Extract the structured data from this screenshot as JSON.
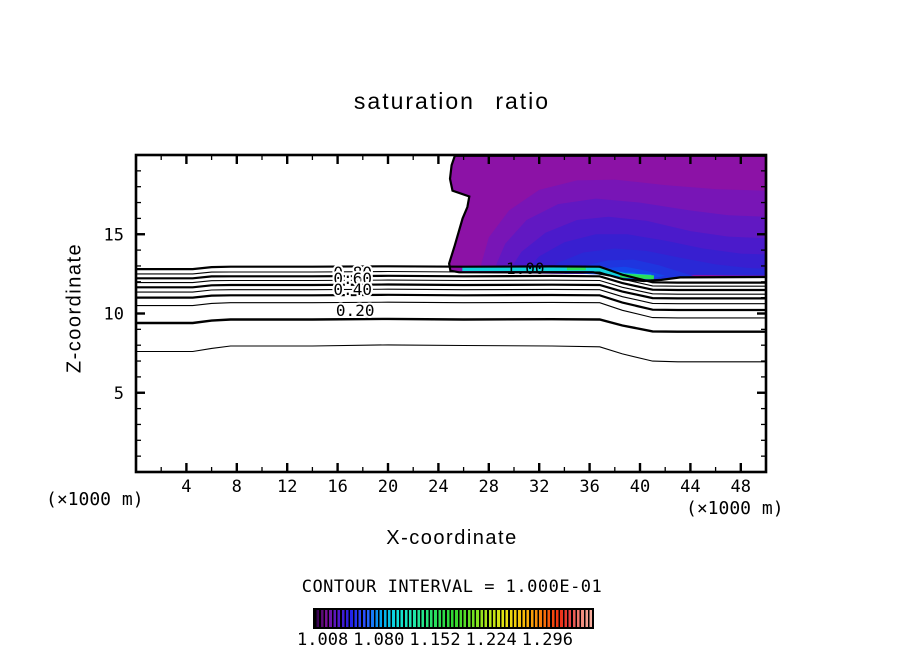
{
  "title_text": "saturation ratio",
  "unit_note_left": "(×1000 m)",
  "unit_note_right": "(×1000 m)",
  "contour_interval_text": "CONTOUR INTERVAL = 1.000E-01",
  "colorbar": {
    "labels": [
      "1.008",
      "1.080",
      "1.152",
      "1.224",
      "1.296"
    ],
    "stripe_color": "#000000",
    "gradient": [
      [
        "#25003E",
        "0%"
      ],
      [
        "#7A1095",
        "4%"
      ],
      [
        "#5518C8",
        "8%"
      ],
      [
        "#2222E8",
        "13%"
      ],
      [
        "#2B52FF",
        "18%"
      ],
      [
        "#00A8F0",
        "24%"
      ],
      [
        "#10E0D8",
        "30%"
      ],
      [
        "#20E8A8",
        "36%"
      ],
      [
        "#28E060",
        "43%"
      ],
      [
        "#30D830",
        "50%"
      ],
      [
        "#70E020",
        "57%"
      ],
      [
        "#B8E818",
        "63%"
      ],
      [
        "#E8E010",
        "69%"
      ],
      [
        "#F8B808",
        "76%"
      ],
      [
        "#F87808",
        "82%"
      ],
      [
        "#F03010",
        "88%"
      ],
      [
        "#E84040",
        "92%"
      ],
      [
        "#F08878",
        "96%"
      ],
      [
        "#F8B0A0",
        "100%"
      ]
    ]
  },
  "chart_data": {
    "type": "contour",
    "title": "saturation ratio",
    "xlabel": "X-coordinate",
    "ylabel": "Z-coordinate",
    "x_units": "×1000 m",
    "contour_interval": "1.000E-01",
    "axes": {
      "xlim": [
        0,
        50
      ],
      "zlim": [
        0,
        20
      ],
      "x_major": [
        4,
        8,
        12,
        16,
        20,
        24,
        28,
        32,
        36,
        40,
        44,
        48
      ],
      "x_minor_step": 2,
      "y_major": [
        5,
        10,
        15
      ],
      "y_minor_step": 1,
      "frame_color": "#000000"
    },
    "contour_lines": [
      {
        "level": 1.0,
        "lw": 2.2,
        "x": [
          0,
          4.5,
          6.0,
          7.5,
          14,
          20,
          26,
          33,
          36.8,
          38.6,
          41,
          43,
          50
        ],
        "z": [
          12.8,
          12.8,
          12.93,
          12.95,
          12.95,
          12.98,
          12.95,
          12.97,
          12.95,
          12.45,
          11.97,
          11.95,
          11.95
        ]
      },
      {
        "level": 0.9,
        "lw": 1.1,
        "x": [
          0,
          4.5,
          6.0,
          7.5,
          14,
          20,
          26,
          33,
          36.8,
          38.6,
          41,
          43,
          50
        ],
        "z": [
          12.5,
          12.5,
          12.61,
          12.62,
          12.62,
          12.65,
          12.62,
          12.64,
          12.62,
          12.17,
          11.74,
          11.72,
          11.72
        ]
      },
      {
        "level": 0.8,
        "lw": 2.2,
        "x": [
          0,
          4.5,
          6.0,
          7.5,
          14,
          20,
          26,
          33,
          36.8,
          38.6,
          41,
          43,
          50
        ],
        "z": [
          12.22,
          12.22,
          12.34,
          12.35,
          12.35,
          12.38,
          12.35,
          12.37,
          12.35,
          11.92,
          11.5,
          11.48,
          11.48
        ]
      },
      {
        "level": 0.7,
        "lw": 1.1,
        "x": [
          0,
          4.5,
          6.0,
          7.5,
          14,
          20,
          26,
          33,
          36.8,
          38.6,
          41,
          43,
          50
        ],
        "z": [
          11.95,
          11.95,
          12.07,
          12.08,
          12.08,
          12.11,
          12.08,
          12.1,
          12.08,
          11.65,
          11.24,
          11.22,
          11.22
        ]
      },
      {
        "level": 0.6,
        "lw": 2.2,
        "x": [
          0,
          4.5,
          6.0,
          7.5,
          14,
          20,
          26,
          33,
          36.8,
          38.6,
          41,
          43,
          50
        ],
        "z": [
          11.65,
          11.65,
          11.78,
          11.8,
          11.8,
          11.83,
          11.8,
          11.82,
          11.8,
          11.38,
          10.97,
          10.95,
          10.95
        ]
      },
      {
        "level": 0.5,
        "lw": 1.1,
        "x": [
          0,
          4.5,
          6.0,
          7.5,
          14,
          20,
          26,
          33,
          36.8,
          38.6,
          41,
          43,
          50
        ],
        "z": [
          11.35,
          11.35,
          11.48,
          11.5,
          11.5,
          11.53,
          11.5,
          11.52,
          11.5,
          11.06,
          10.64,
          10.62,
          10.62
        ]
      },
      {
        "level": 0.4,
        "lw": 2.2,
        "x": [
          0,
          4.5,
          6.0,
          7.5,
          14,
          20,
          26,
          33,
          36.8,
          38.6,
          41,
          43,
          50
        ],
        "z": [
          11.0,
          11.0,
          11.13,
          11.15,
          11.15,
          11.18,
          11.15,
          11.17,
          11.15,
          10.69,
          10.24,
          10.22,
          10.22
        ]
      },
      {
        "level": 0.3,
        "lw": 1.1,
        "x": [
          0,
          4.5,
          6.0,
          7.5,
          14,
          20,
          26,
          33,
          36.8,
          38.6,
          41,
          43,
          50
        ],
        "z": [
          10.5,
          10.5,
          10.64,
          10.68,
          10.68,
          10.71,
          10.68,
          10.7,
          10.68,
          10.2,
          9.74,
          9.72,
          9.72
        ]
      },
      {
        "level": 0.2,
        "lw": 2.4,
        "x": [
          0,
          4.5,
          6.0,
          7.5,
          14,
          20,
          26,
          33,
          36.8,
          38.6,
          41,
          43,
          50
        ],
        "z": [
          9.4,
          9.4,
          9.55,
          9.62,
          9.62,
          9.66,
          9.62,
          9.64,
          9.62,
          9.24,
          8.87,
          8.85,
          8.85
        ]
      },
      {
        "level": 0.1,
        "lw": 1.1,
        "x": [
          0,
          4.5,
          6.0,
          7.5,
          14,
          20,
          26,
          33,
          36.8,
          38.6,
          41,
          43,
          50
        ],
        "z": [
          7.6,
          7.6,
          7.8,
          7.95,
          7.95,
          8.02,
          7.98,
          7.95,
          7.9,
          7.45,
          7.0,
          6.95,
          6.95
        ]
      }
    ],
    "contour_labels": [
      {
        "text": "0.80",
        "x": 17.2,
        "z": 12.57,
        "halo": true
      },
      {
        "text": "0.60",
        "x": 17.2,
        "z": 12.17,
        "halo": true
      },
      {
        "text": "0.40",
        "x": 17.2,
        "z": 11.48,
        "halo": true
      },
      {
        "text": "0.20",
        "x": 17.4,
        "z": 10.16,
        "halo": true
      },
      {
        "text": "1.00",
        "x": 30.9,
        "z": 12.8,
        "halo": false
      }
    ],
    "plume": {
      "outline": {
        "color": "#000000",
        "width": 2.2,
        "points": [
          [
            25.3,
            19.95
          ],
          [
            25.05,
            19.35
          ],
          [
            24.92,
            18.5
          ],
          [
            25.12,
            17.75
          ],
          [
            26.45,
            17.38
          ],
          [
            26.3,
            16.72
          ],
          [
            25.92,
            16.0
          ],
          [
            25.3,
            14.3
          ],
          [
            24.85,
            13.15
          ],
          [
            24.95,
            12.7
          ],
          [
            25.65,
            12.6
          ],
          [
            36.3,
            12.6
          ],
          [
            37.6,
            12.4
          ],
          [
            38.7,
            12.15
          ],
          [
            40.3,
            12.05
          ],
          [
            41.7,
            12.12
          ],
          [
            43.2,
            12.28
          ],
          [
            50,
            12.3
          ],
          [
            50,
            19.95
          ]
        ]
      },
      "layers": [
        {
          "color": "#8C12A6",
          "points": [
            [
              25.3,
              19.95
            ],
            [
              25.05,
              19.35
            ],
            [
              24.92,
              18.5
            ],
            [
              25.12,
              17.75
            ],
            [
              26.45,
              17.38
            ],
            [
              26.3,
              16.72
            ],
            [
              25.92,
              16.0
            ],
            [
              25.3,
              14.3
            ],
            [
              24.85,
              13.15
            ],
            [
              24.95,
              12.7
            ],
            [
              25.65,
              12.6
            ],
            [
              36.3,
              12.6
            ],
            [
              37.6,
              12.4
            ],
            [
              38.7,
              12.15
            ],
            [
              40.3,
              12.05
            ],
            [
              41.7,
              12.12
            ],
            [
              43.2,
              12.28
            ],
            [
              50,
              12.3
            ],
            [
              50,
              19.95
            ]
          ]
        },
        {
          "color": "#7815B6",
          "points": [
            [
              27.2,
              12.55
            ],
            [
              28.0,
              14.8
            ],
            [
              29.6,
              16.5
            ],
            [
              32,
              17.8
            ],
            [
              35,
              18.4
            ],
            [
              38,
              18.45
            ],
            [
              42,
              18.1
            ],
            [
              46,
              17.85
            ],
            [
              50,
              17.75
            ],
            [
              50,
              12.4
            ]
          ]
        },
        {
          "color": "#6118C2",
          "points": [
            [
              28.3,
              12.55
            ],
            [
              29.3,
              14.4
            ],
            [
              31,
              15.9
            ],
            [
              33.5,
              16.9
            ],
            [
              36.5,
              17.25
            ],
            [
              40,
              17.0
            ],
            [
              44,
              16.5
            ],
            [
              47,
              16.2
            ],
            [
              50,
              16.1
            ],
            [
              50,
              12.4
            ]
          ]
        },
        {
          "color": "#4B1ACB",
          "points": [
            [
              29.5,
              12.55
            ],
            [
              30.6,
              13.9
            ],
            [
              32.5,
              15.1
            ],
            [
              35,
              15.9
            ],
            [
              37.5,
              16.1
            ],
            [
              40.5,
              15.85
            ],
            [
              44,
              15.2
            ],
            [
              47,
              14.85
            ],
            [
              50,
              14.75
            ],
            [
              50,
              12.4
            ]
          ]
        },
        {
          "color": "#381FD0",
          "points": [
            [
              30.8,
              12.55
            ],
            [
              32,
              13.6
            ],
            [
              34,
              14.5
            ],
            [
              36.5,
              15.0
            ],
            [
              39,
              15.0
            ],
            [
              42,
              14.6
            ],
            [
              45,
              14.1
            ],
            [
              48,
              13.78
            ],
            [
              50,
              13.72
            ],
            [
              50,
              12.4
            ]
          ]
        },
        {
          "color": "#2A28D6",
          "points": [
            [
              32.3,
              12.55
            ],
            [
              33.5,
              13.2
            ],
            [
              35.5,
              13.85
            ],
            [
              38,
              14.1
            ],
            [
              40.5,
              13.95
            ],
            [
              43,
              13.55
            ],
            [
              46,
              13.1
            ],
            [
              48.5,
              12.88
            ],
            [
              50,
              12.82
            ],
            [
              50,
              12.4
            ]
          ]
        },
        {
          "color": "#1F35DF",
          "points": [
            [
              34.0,
              12.5
            ],
            [
              35.5,
              13.0
            ],
            [
              37.5,
              13.35
            ],
            [
              39.5,
              13.4
            ],
            [
              41.5,
              13.05
            ],
            [
              43.5,
              12.55
            ],
            [
              44.5,
              12.3
            ],
            [
              40.0,
              12.1
            ],
            [
              38.5,
              12.2
            ],
            [
              36.5,
              12.6
            ]
          ]
        },
        {
          "color": "#1347EA",
          "points": [
            [
              35.5,
              12.5
            ],
            [
              37,
              12.85
            ],
            [
              38.8,
              12.95
            ],
            [
              40.5,
              12.7
            ],
            [
              42,
              12.38
            ],
            [
              40.3,
              12.1
            ],
            [
              38.8,
              12.18
            ],
            [
              37.2,
              12.45
            ]
          ]
        },
        {
          "color": "#0A5BF5",
          "points": [
            [
              36.5,
              12.48
            ],
            [
              38,
              12.66
            ],
            [
              39.5,
              12.6
            ],
            [
              40.8,
              12.32
            ],
            [
              39.5,
              12.16
            ],
            [
              38.3,
              12.28
            ]
          ]
        }
      ],
      "bands": [
        {
          "color": "#14D2DC",
          "width": 4.5,
          "points": [
            [
              25.9,
              12.82
            ],
            [
              36.2,
              12.82
            ],
            [
              37.6,
              12.62
            ],
            [
              38.8,
              12.4
            ],
            [
              40.9,
              12.3
            ]
          ]
        },
        {
          "color": "#2BE05A",
          "width": 4,
          "points": [
            [
              38.4,
              12.4
            ],
            [
              41.1,
              12.28
            ]
          ]
        },
        {
          "color": "#2BE05A",
          "width": 3,
          "points": [
            [
              34.2,
              12.82
            ],
            [
              35.7,
              12.82
            ]
          ]
        }
      ]
    }
  }
}
